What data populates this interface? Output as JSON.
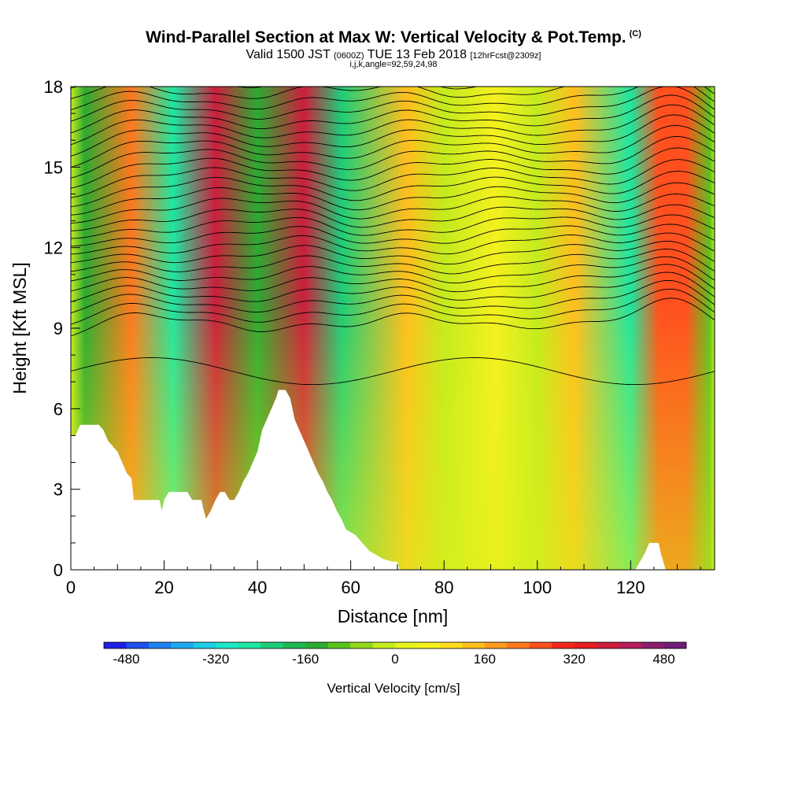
{
  "header": {
    "title": "Wind-Parallel Section at Max W: Vertical Velocity & Pot.Temp.",
    "copyright": "(C)",
    "valid_prefix": "Valid 1500 JST",
    "zulu": "(0600Z)",
    "valid_date": "TUE 13 Feb 2018",
    "forecast": "[12hrFcst@2309z]",
    "indices": "i,j,k,angle=92,59,24,98"
  },
  "colors": {
    "palette": [
      "#1e1ee6",
      "#1e50ee",
      "#1e82f0",
      "#1eaaf0",
      "#1ecde6",
      "#1ee6c8",
      "#1ee6a0",
      "#1ecd78",
      "#1eb950",
      "#2daa32",
      "#5ac31e",
      "#91d71e",
      "#c3eb1e",
      "#e6f51e",
      "#f5f01e",
      "#ffdc1e",
      "#ffbe1e",
      "#ff9b1e",
      "#ff781e",
      "#ff501e",
      "#f5281e",
      "#e61e1e",
      "#cd1e3c",
      "#b41e5a",
      "#8c1e6e",
      "#6e1e78"
    ],
    "terrain": "#ffffff",
    "contour": "#000000"
  },
  "chart_data": {
    "type": "heatmap",
    "xlabel": "Distance [nm]",
    "ylabel": "Height [Kft MSL]",
    "xlim": [
      0,
      138
    ],
    "ylim": [
      0,
      18
    ],
    "xticks": [
      0,
      20,
      40,
      60,
      80,
      100,
      120
    ],
    "yticks": [
      0,
      3,
      6,
      9,
      12,
      15,
      18
    ],
    "terrain_kft": [
      [
        0,
        5.0
      ],
      [
        1,
        5.0
      ],
      [
        2,
        5.4
      ],
      [
        4,
        5.4
      ],
      [
        6,
        5.4
      ],
      [
        7,
        5.2
      ],
      [
        8,
        4.8
      ],
      [
        9,
        4.6
      ],
      [
        10,
        4.4
      ],
      [
        11,
        4.0
      ],
      [
        12,
        3.6
      ],
      [
        13,
        3.4
      ],
      [
        13.5,
        2.6
      ],
      [
        17,
        2.6
      ],
      [
        19,
        2.6
      ],
      [
        19.5,
        2.2
      ],
      [
        20,
        2.6
      ],
      [
        21,
        2.9
      ],
      [
        23,
        2.9
      ],
      [
        25,
        2.9
      ],
      [
        26,
        2.6
      ],
      [
        27,
        2.6
      ],
      [
        28,
        2.6
      ],
      [
        28.5,
        2.2
      ],
      [
        29,
        1.9
      ],
      [
        30,
        2.2
      ],
      [
        31,
        2.6
      ],
      [
        32,
        2.9
      ],
      [
        33,
        2.9
      ],
      [
        34,
        2.6
      ],
      [
        35,
        2.6
      ],
      [
        36,
        2.9
      ],
      [
        37,
        3.3
      ],
      [
        38,
        3.6
      ],
      [
        39,
        4.0
      ],
      [
        40,
        4.4
      ],
      [
        41,
        5.2
      ],
      [
        42,
        5.6
      ],
      [
        43,
        6.0
      ],
      [
        44,
        6.4
      ],
      [
        44.5,
        6.7
      ],
      [
        46,
        6.7
      ],
      [
        47,
        6.4
      ],
      [
        47.5,
        6.0
      ],
      [
        48,
        5.6
      ],
      [
        49,
        5.2
      ],
      [
        50,
        4.8
      ],
      [
        51,
        4.4
      ],
      [
        52,
        4.0
      ],
      [
        53,
        3.6
      ],
      [
        54,
        3.3
      ],
      [
        55,
        2.9
      ],
      [
        56,
        2.6
      ],
      [
        57,
        2.2
      ],
      [
        58,
        1.9
      ],
      [
        59,
        1.5
      ],
      [
        61,
        1.3
      ],
      [
        62,
        1.1
      ],
      [
        63,
        0.9
      ],
      [
        64,
        0.7
      ],
      [
        65,
        0.6
      ],
      [
        67,
        0.4
      ],
      [
        69,
        0.3
      ],
      [
        70,
        0.3
      ],
      [
        70.5,
        0.0
      ],
      [
        121,
        0.0
      ],
      [
        122,
        0.3
      ],
      [
        123,
        0.6
      ],
      [
        124,
        1.0
      ],
      [
        126,
        1.0
      ],
      [
        126.5,
        0.6
      ],
      [
        127,
        0.3
      ],
      [
        127.5,
        0.0
      ],
      [
        138,
        0.0
      ]
    ],
    "updraft_columns": [
      {
        "x_nm": 13,
        "w_cms": 200
      },
      {
        "x_nm": 31,
        "w_cms": 370
      },
      {
        "x_nm": 50,
        "w_cms": 370
      },
      {
        "x_nm": 72,
        "w_cms": 130
      },
      {
        "x_nm": 91,
        "w_cms": 70
      },
      {
        "x_nm": 108,
        "w_cms": 120
      },
      {
        "x_nm": 126,
        "w_cms": 250
      },
      {
        "x_nm": 132,
        "w_cms": 240
      }
    ],
    "downdraft_columns": [
      {
        "x_nm": 3,
        "w_cms": -140
      },
      {
        "x_nm": 22,
        "w_cms": -270
      },
      {
        "x_nm": 40,
        "w_cms": -150
      },
      {
        "x_nm": 58,
        "w_cms": -230
      },
      {
        "x_nm": 80,
        "w_cms": -40
      },
      {
        "x_nm": 100,
        "w_cms": -40
      },
      {
        "x_nm": 120,
        "w_cms": -260
      },
      {
        "x_nm": 137,
        "w_cms": -120
      }
    ]
  },
  "colorbar": {
    "label": "Vertical Velocity [cm/s]",
    "ticks": [
      "-480",
      "-320",
      "-160",
      "0",
      "160",
      "320",
      "480"
    ]
  }
}
